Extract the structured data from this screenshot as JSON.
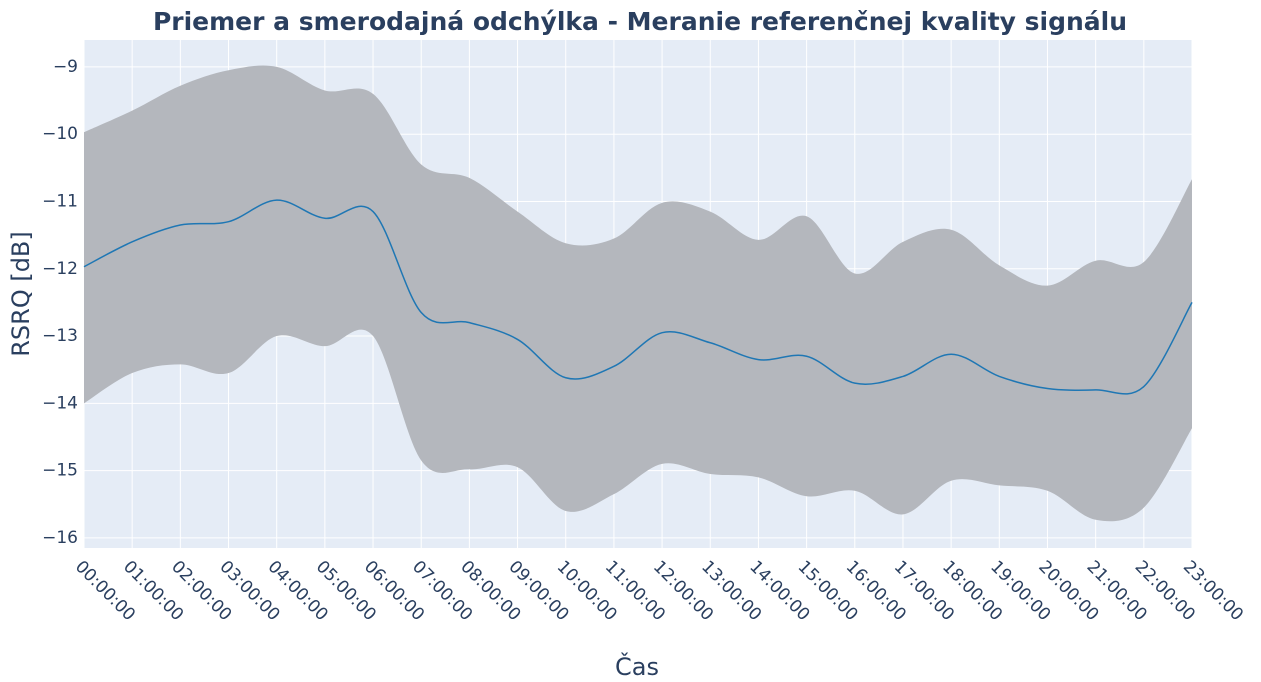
{
  "chart_data": {
    "type": "line",
    "title": "Priemer a smerodajná odchýlka - Meranie referenčnej kvality signálu",
    "x_label": "Čas",
    "y_label": "RSRQ [dB]",
    "categories": [
      "00:00:00",
      "01:00:00",
      "02:00:00",
      "03:00:00",
      "04:00:00",
      "05:00:00",
      "06:00:00",
      "07:00:00",
      "08:00:00",
      "09:00:00",
      "10:00:00",
      "11:00:00",
      "12:00:00",
      "13:00:00",
      "14:00:00",
      "15:00:00",
      "16:00:00",
      "17:00:00",
      "18:00:00",
      "19:00:00",
      "20:00:00",
      "21:00:00",
      "22:00:00",
      "23:00:00"
    ],
    "series": [
      {
        "color": "#1f77b4",
        "values": [
          -11.97,
          -11.6,
          -11.35,
          -11.3,
          -10.98,
          -11.25,
          -11.15,
          -12.65,
          -12.8,
          -13.05,
          -13.62,
          -13.45,
          -12.95,
          -13.1,
          -13.35,
          -13.3,
          -13.7,
          -13.6,
          -13.27,
          -13.6,
          -13.78,
          -13.8,
          -13.75,
          -12.5
        ]
      }
    ],
    "band": {
      "color": "#b4b7bd",
      "upper": [
        -9.97,
        -9.65,
        -9.28,
        -9.05,
        -9.0,
        -9.35,
        -9.4,
        -10.45,
        -10.65,
        -11.15,
        -11.62,
        -11.55,
        -11.02,
        -11.15,
        -11.57,
        -11.22,
        -12.07,
        -11.6,
        -11.42,
        -11.95,
        -12.25,
        -11.88,
        -11.9,
        -10.67
      ],
      "lower": [
        -14.0,
        -13.55,
        -13.42,
        -13.55,
        -13.0,
        -13.15,
        -13.0,
        -14.85,
        -14.98,
        -14.95,
        -15.6,
        -15.35,
        -14.9,
        -15.05,
        -15.1,
        -15.38,
        -15.3,
        -15.65,
        -15.15,
        -15.22,
        -15.3,
        -15.73,
        -15.55,
        -14.37
      ]
    },
    "ylim": [
      -16.15,
      -8.6
    ],
    "yticks": [
      {
        "value": -9,
        "label": "−9"
      },
      {
        "value": -10,
        "label": "−10"
      },
      {
        "value": -11,
        "label": "−11"
      },
      {
        "value": -12,
        "label": "−12"
      },
      {
        "value": -13,
        "label": "−13"
      },
      {
        "value": -14,
        "label": "−14"
      },
      {
        "value": -15,
        "label": "−15"
      },
      {
        "value": -16,
        "label": "−16"
      }
    ],
    "grid": true
  }
}
